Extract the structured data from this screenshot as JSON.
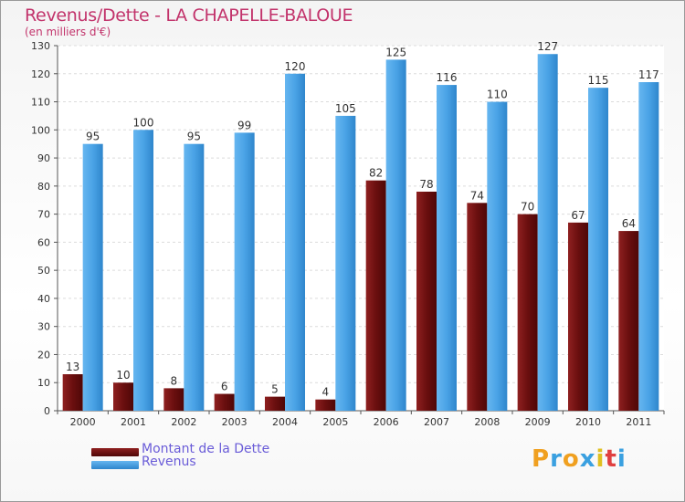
{
  "chart_data": {
    "type": "bar",
    "title": "Revenus/Dette - LA CHAPELLE-BALOUE",
    "subtitle": "(en milliers d'€)",
    "categories": [
      "2000",
      "2001",
      "2002",
      "2003",
      "2004",
      "2005",
      "2006",
      "2007",
      "2008",
      "2009",
      "2010",
      "2011"
    ],
    "series": [
      {
        "name": "Montant de la Dette",
        "color": "#7a1515",
        "values": [
          13,
          10,
          8,
          6,
          5,
          4,
          82,
          78,
          74,
          70,
          67,
          64
        ]
      },
      {
        "name": "Revenus",
        "color": "#4aa3e6",
        "values": [
          95,
          100,
          95,
          99,
          120,
          105,
          125,
          116,
          110,
          127,
          115,
          117
        ]
      }
    ],
    "ylim": [
      0,
      130
    ],
    "yticks": [
      0,
      10,
      20,
      30,
      40,
      50,
      60,
      70,
      80,
      90,
      100,
      110,
      120,
      130
    ],
    "grid": true,
    "legend": "bottom-left"
  },
  "logo": {
    "letters": [
      "P",
      "r",
      "o",
      "x",
      "i",
      "t",
      "i"
    ],
    "colors": [
      "#f0a020",
      "#3aa0e0",
      "#f0a020",
      "#3aa0e0",
      "#e0c020",
      "#e04040",
      "#3aa0e0"
    ]
  }
}
